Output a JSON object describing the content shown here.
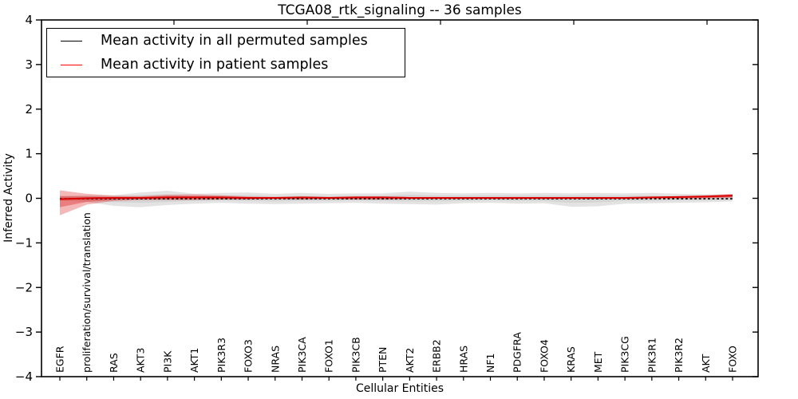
{
  "chart_data": {
    "type": "line",
    "title": "TCGA08_rtk_signaling -- 36 samples",
    "xlabel": "Cellular Entities",
    "ylabel": "Inferred Activity",
    "ylim": [
      -4,
      4
    ],
    "yticks": [
      4,
      3,
      2,
      1,
      0,
      -1,
      -2,
      -3,
      -4
    ],
    "ytick_labels": [
      "4",
      "3",
      "2",
      "1",
      "0",
      "−1",
      "−2",
      "−3",
      "−4"
    ],
    "grid": false,
    "categories": [
      "EGFR",
      "proliferation/survival/translation",
      "RAS",
      "AKT3",
      "PI3K",
      "AKT1",
      "PIK3R3",
      "FOXO3",
      "NRAS",
      "PIK3CA",
      "FOXO1",
      "PIK3CB",
      "PTEN",
      "AKT2",
      "ERBB2",
      "HRAS",
      "NF1",
      "PDGFRA",
      "FOXO4",
      "KRAS",
      "MET",
      "PIK3CG",
      "PIK3R1",
      "PIK3R2",
      "AKT",
      "FOXO"
    ],
    "series": [
      {
        "name": "Mean activity in all permuted samples",
        "color": "#000000",
        "style": "dashed",
        "values": [
          -0.01,
          -0.01,
          -0.01,
          -0.01,
          -0.01,
          -0.01,
          -0.01,
          -0.01,
          -0.01,
          -0.01,
          -0.01,
          -0.01,
          -0.01,
          -0.01,
          -0.01,
          -0.01,
          -0.01,
          -0.01,
          -0.01,
          -0.01,
          -0.01,
          -0.01,
          -0.01,
          -0.01,
          -0.01,
          -0.01
        ]
      },
      {
        "name": "Mean activity in patient samples",
        "color": "#dd0000",
        "style": "solid",
        "values": [
          -0.02,
          0.0,
          0.01,
          0.01,
          0.02,
          0.02,
          0.02,
          0.01,
          0.01,
          0.02,
          0.01,
          0.02,
          0.02,
          0.01,
          0.01,
          0.01,
          0.01,
          0.01,
          0.01,
          0.01,
          0.01,
          0.01,
          0.02,
          0.03,
          0.04,
          0.06
        ]
      }
    ],
    "bands": [
      {
        "name": "permuted-spread-outer",
        "color": "#bcbcbc",
        "opacity": 0.42,
        "upper": [
          0.05,
          0.07,
          0.07,
          0.13,
          0.17,
          0.1,
          0.12,
          0.13,
          0.1,
          0.12,
          0.1,
          0.11,
          0.11,
          0.15,
          0.12,
          0.11,
          0.12,
          0.11,
          0.12,
          0.11,
          0.12,
          0.11,
          0.12,
          0.1,
          0.09,
          0.08
        ],
        "lower": [
          -0.05,
          -0.08,
          -0.17,
          -0.2,
          -0.15,
          -0.12,
          -0.1,
          -0.12,
          -0.13,
          -0.12,
          -0.11,
          -0.1,
          -0.12,
          -0.13,
          -0.14,
          -0.11,
          -0.1,
          -0.12,
          -0.11,
          -0.19,
          -0.18,
          -0.12,
          -0.11,
          -0.1,
          -0.09,
          -0.07
        ]
      },
      {
        "name": "permuted-spread-inner",
        "color": "#bcbcbc",
        "opacity": 0.38,
        "upper": [
          0.03,
          0.04,
          0.04,
          0.07,
          0.09,
          0.05,
          0.06,
          0.07,
          0.05,
          0.06,
          0.05,
          0.06,
          0.06,
          0.08,
          0.06,
          0.06,
          0.06,
          0.06,
          0.06,
          0.06,
          0.06,
          0.06,
          0.06,
          0.05,
          0.05,
          0.04
        ],
        "lower": [
          -0.03,
          -0.04,
          -0.09,
          -0.1,
          -0.08,
          -0.06,
          -0.05,
          -0.06,
          -0.07,
          -0.06,
          -0.06,
          -0.05,
          -0.06,
          -0.07,
          -0.07,
          -0.06,
          -0.05,
          -0.06,
          -0.06,
          -0.1,
          -0.09,
          -0.06,
          -0.06,
          -0.05,
          -0.05,
          -0.04
        ]
      },
      {
        "name": "patient-spread-outer",
        "color": "#dd2222",
        "opacity": 0.32,
        "upper": [
          0.18,
          0.1,
          0.06,
          0.05,
          0.08,
          0.09,
          0.07,
          0.04,
          0.03,
          0.03,
          0.03,
          0.04,
          0.04,
          0.03,
          0.03,
          0.02,
          0.02,
          0.03,
          0.02,
          0.02,
          0.02,
          0.02,
          0.03,
          0.05,
          0.07,
          0.1
        ],
        "lower": [
          -0.38,
          -0.14,
          -0.06,
          -0.04,
          -0.04,
          -0.04,
          -0.03,
          -0.03,
          -0.02,
          -0.03,
          -0.02,
          -0.03,
          -0.03,
          -0.02,
          -0.02,
          -0.02,
          -0.02,
          -0.02,
          -0.02,
          -0.02,
          -0.02,
          -0.02,
          -0.01,
          -0.01,
          0.0,
          0.01
        ],
        "lower_note": ""
      },
      {
        "name": "patient-spread-inner",
        "color": "#dd2222",
        "opacity": 0.38,
        "upper": [
          0.05,
          0.04,
          0.03,
          0.03,
          0.05,
          0.05,
          0.04,
          0.02,
          0.02,
          0.02,
          0.02,
          0.03,
          0.03,
          0.02,
          0.02,
          0.01,
          0.01,
          0.02,
          0.01,
          0.01,
          0.01,
          0.01,
          0.02,
          0.03,
          0.05,
          0.08
        ],
        "lower": [
          -0.2,
          -0.08,
          -0.04,
          -0.02,
          -0.02,
          -0.02,
          -0.02,
          -0.02,
          -0.01,
          -0.02,
          -0.01,
          -0.02,
          -0.02,
          -0.01,
          -0.01,
          -0.01,
          -0.01,
          -0.01,
          -0.01,
          -0.01,
          -0.01,
          -0.01,
          0.0,
          0.0,
          0.01,
          0.03
        ]
      }
    ],
    "legend": {
      "position": "upper-left",
      "entries": [
        {
          "label": "Mean activity in all permuted samples",
          "color": "#000000"
        },
        {
          "label": "Mean activity in patient samples",
          "color": "#ff0000"
        }
      ]
    }
  }
}
